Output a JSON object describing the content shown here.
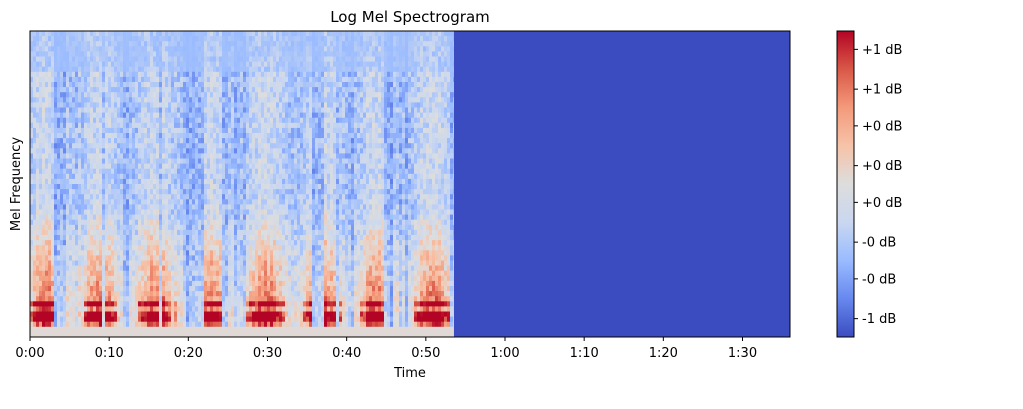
{
  "chart_data": {
    "type": "heatmap",
    "title": "Log Mel Spectrogram",
    "xlabel": "Time",
    "ylabel": "Mel Frequency",
    "x_ticks": [
      "0:00",
      "0:10",
      "0:20",
      "0:30",
      "0:40",
      "0:50",
      "1:00",
      "1:10",
      "1:20",
      "1:30"
    ],
    "x_tick_seconds": [
      0,
      10,
      20,
      30,
      40,
      50,
      60,
      70,
      80,
      90
    ],
    "xlim_seconds": [
      0,
      96
    ],
    "audio_end_seconds": 53.5,
    "colormap": "coolwarm",
    "colorbar": {
      "tick_labels": [
        "+1 dB",
        "+1 dB",
        "+0 dB",
        "+0 dB",
        "+0 dB",
        "-0 dB",
        "-0 dB",
        "-1 dB"
      ],
      "tick_levels": [
        0.94,
        0.81,
        0.69,
        0.56,
        0.44,
        0.31,
        0.19,
        0.06
      ],
      "colors": [
        "#3b4cc0",
        "#6788ee",
        "#9abbff",
        "#c9d7f0",
        "#dddddd",
        "#f6c3a9",
        "#f49a7b",
        "#d95847",
        "#b40426"
      ]
    },
    "silence_color": "#3b4cc0",
    "grid": false
  }
}
